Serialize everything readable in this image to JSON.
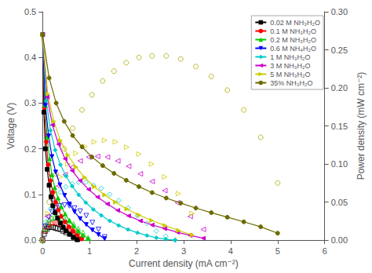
{
  "chart_data": {
    "type": "line",
    "x_label": "Current density (mA cm⁻²)",
    "y_label": "Voltage (V)",
    "y2_label": "Power density (mW cm⁻²)",
    "xlim": [
      0,
      6
    ],
    "xticks": [
      0,
      1,
      2,
      3,
      4,
      5,
      6
    ],
    "ylim": [
      0,
      0.5
    ],
    "yticks": [
      {
        "value": 0,
        "label": "0.0"
      },
      0.1,
      0.2,
      0.3,
      0.4,
      0.5
    ],
    "y2lim": [
      0,
      0.3
    ],
    "y2ticks": [
      {
        "value": 0,
        "label": "0.00"
      },
      0.05,
      {
        "value": 0.1,
        "label": "0.10"
      },
      0.15,
      {
        "value": 0.2,
        "label": "0.20"
      },
      0.25,
      {
        "value": 0.3,
        "label": "0.30"
      }
    ],
    "grid": false,
    "legend": "upper right",
    "series": [
      {
        "name": "0.02 M NH₃H₂O",
        "type": "line",
        "color": "#000000",
        "marker": "square",
        "x": [
          0.0,
          0.03,
          0.06,
          0.1,
          0.14,
          0.18,
          0.22,
          0.27,
          0.32,
          0.38,
          0.44,
          0.5,
          0.58,
          0.66,
          0.74
        ],
        "values": [
          0.45,
          0.28,
          0.2,
          0.155,
          0.12,
          0.095,
          0.075,
          0.06,
          0.048,
          0.037,
          0.028,
          0.02,
          0.013,
          0.006,
          0.001
        ]
      },
      {
        "type": "scatter",
        "axis": "y2",
        "color": "#000000",
        "marker": "square",
        "x": [
          0.0,
          0.03,
          0.06,
          0.1,
          0.14,
          0.18,
          0.22,
          0.27,
          0.32,
          0.38,
          0.44,
          0.5,
          0.58,
          0.66,
          0.74
        ],
        "values": [
          0.0,
          0.008,
          0.012,
          0.015,
          0.017,
          0.017,
          0.017,
          0.016,
          0.015,
          0.014,
          0.012,
          0.01,
          0.008,
          0.004,
          0.001
        ]
      },
      {
        "name": "0.1 M NH₃H₂O",
        "type": "line",
        "color": "#ff0000",
        "marker": "circle",
        "x": [
          0.0,
          0.04,
          0.08,
          0.12,
          0.17,
          0.22,
          0.28,
          0.34,
          0.4,
          0.48,
          0.56,
          0.65,
          0.74,
          0.83
        ],
        "values": [
          0.45,
          0.29,
          0.215,
          0.165,
          0.13,
          0.105,
          0.083,
          0.066,
          0.052,
          0.04,
          0.029,
          0.019,
          0.011,
          0.003
        ]
      },
      {
        "type": "scatter",
        "axis": "y2",
        "color": "#ff0000",
        "marker": "circle",
        "x": [
          0.0,
          0.04,
          0.08,
          0.12,
          0.17,
          0.22,
          0.28,
          0.34,
          0.4,
          0.48,
          0.56,
          0.65,
          0.74,
          0.83
        ],
        "values": [
          0.0,
          0.012,
          0.017,
          0.02,
          0.022,
          0.023,
          0.023,
          0.022,
          0.021,
          0.019,
          0.016,
          0.012,
          0.008,
          0.002
        ]
      },
      {
        "name": "0.2 M NH₃H₂O",
        "type": "line",
        "color": "#00cc00",
        "marker": "triangle",
        "x": [
          0.0,
          0.05,
          0.1,
          0.15,
          0.2,
          0.26,
          0.33,
          0.4,
          0.48,
          0.57,
          0.66,
          0.76,
          0.86,
          0.97
        ],
        "values": [
          0.45,
          0.295,
          0.225,
          0.178,
          0.143,
          0.115,
          0.092,
          0.073,
          0.057,
          0.043,
          0.031,
          0.02,
          0.011,
          0.003
        ]
      },
      {
        "type": "scatter",
        "axis": "y2",
        "color": "#00cc00",
        "marker": "triangle",
        "x": [
          0.0,
          0.05,
          0.1,
          0.15,
          0.2,
          0.26,
          0.33,
          0.4,
          0.48,
          0.57,
          0.66,
          0.76,
          0.86,
          0.97
        ],
        "values": [
          0.0,
          0.015,
          0.023,
          0.027,
          0.029,
          0.03,
          0.03,
          0.029,
          0.027,
          0.025,
          0.021,
          0.015,
          0.01,
          0.003
        ]
      },
      {
        "name": "0.6 M NH₄H₂O",
        "type": "line",
        "color": "#0000ff",
        "marker": "triangle-down",
        "x": [
          0.0,
          0.06,
          0.13,
          0.2,
          0.28,
          0.37,
          0.47,
          0.57,
          0.68,
          0.8,
          0.93,
          1.06,
          1.19,
          1.32
        ],
        "values": [
          0.45,
          0.295,
          0.228,
          0.183,
          0.149,
          0.121,
          0.098,
          0.079,
          0.062,
          0.047,
          0.034,
          0.022,
          0.012,
          0.003
        ]
      },
      {
        "type": "scatter",
        "axis": "y2",
        "color": "#0000ff",
        "marker": "triangle-down",
        "x": [
          0.0,
          0.06,
          0.13,
          0.2,
          0.28,
          0.37,
          0.47,
          0.57,
          0.68,
          0.8,
          0.93,
          1.06,
          1.19,
          1.32
        ],
        "values": [
          0.0,
          0.018,
          0.03,
          0.037,
          0.042,
          0.045,
          0.046,
          0.045,
          0.042,
          0.038,
          0.032,
          0.023,
          0.014,
          0.004
        ]
      },
      {
        "name": "1 M NH₃H₂O",
        "type": "line",
        "color": "#00cccc",
        "marker": "diamond",
        "x": [
          0.0,
          0.08,
          0.17,
          0.27,
          0.38,
          0.5,
          0.63,
          0.77,
          0.92,
          1.08,
          1.25,
          1.43,
          1.62,
          1.82,
          2.02,
          2.22,
          2.42,
          2.62,
          2.82
        ],
        "values": [
          0.45,
          0.305,
          0.24,
          0.197,
          0.165,
          0.14,
          0.118,
          0.099,
          0.082,
          0.067,
          0.054,
          0.042,
          0.032,
          0.023,
          0.016,
          0.01,
          0.005,
          0.002,
          0.0
        ]
      },
      {
        "type": "scatter",
        "axis": "y2",
        "color": "#00cccc",
        "marker": "diamond",
        "x": [
          0.0,
          0.08,
          0.17,
          0.27,
          0.38,
          0.5,
          0.63,
          0.77,
          0.92,
          1.08,
          1.25,
          1.43,
          1.62,
          1.82,
          2.02,
          2.22,
          2.42,
          2.62,
          2.82
        ],
        "values": [
          0.0,
          0.024,
          0.041,
          0.053,
          0.063,
          0.07,
          0.074,
          0.076,
          0.076,
          0.072,
          0.068,
          0.06,
          0.052,
          0.042,
          0.032,
          0.022,
          0.012,
          0.005,
          0.0
        ]
      },
      {
        "name": "3 M NH₃H₂O",
        "type": "line",
        "color": "#cc00cc",
        "marker": "triangle-left",
        "x": [
          0.0,
          0.1,
          0.21,
          0.34,
          0.48,
          0.63,
          0.8,
          0.98,
          1.17,
          1.38,
          1.6,
          1.83,
          2.08,
          2.33,
          2.6,
          2.87,
          3.14,
          3.42
        ],
        "values": [
          0.45,
          0.313,
          0.252,
          0.21,
          0.178,
          0.152,
          0.13,
          0.111,
          0.094,
          0.079,
          0.065,
          0.053,
          0.042,
          0.033,
          0.025,
          0.017,
          0.01,
          0.004
        ]
      },
      {
        "type": "scatter",
        "axis": "y2",
        "color": "#cc00cc",
        "marker": "triangle-left",
        "x": [
          0.0,
          0.1,
          0.21,
          0.34,
          0.48,
          0.63,
          0.8,
          0.98,
          1.17,
          1.38,
          1.6,
          1.83,
          2.08,
          2.33,
          2.6,
          2.87,
          3.14,
          3.42
        ],
        "values": [
          0.0,
          0.031,
          0.053,
          0.071,
          0.086,
          0.096,
          0.104,
          0.109,
          0.11,
          0.109,
          0.104,
          0.097,
          0.087,
          0.077,
          0.065,
          0.049,
          0.031,
          0.014
        ]
      },
      {
        "name": "5 M NH₃H₂O",
        "type": "line",
        "color": "#cccc00",
        "marker": "triangle-right",
        "x": [
          0.0,
          0.11,
          0.24,
          0.38,
          0.54,
          0.71,
          0.9,
          1.1,
          1.32,
          1.55,
          1.79,
          2.05,
          2.32,
          2.6,
          2.89,
          3.18
        ],
        "values": [
          0.45,
          0.32,
          0.26,
          0.218,
          0.186,
          0.16,
          0.137,
          0.117,
          0.099,
          0.083,
          0.068,
          0.055,
          0.043,
          0.032,
          0.021,
          0.011
        ]
      },
      {
        "type": "scatter",
        "axis": "y2",
        "color": "#cccc00",
        "marker": "triangle-right",
        "x": [
          0.0,
          0.11,
          0.24,
          0.38,
          0.54,
          0.71,
          0.9,
          1.1,
          1.32,
          1.55,
          1.79,
          2.05,
          2.32,
          2.6,
          2.89,
          3.18
        ],
        "values": [
          0.0,
          0.035,
          0.062,
          0.083,
          0.1,
          0.114,
          0.123,
          0.129,
          0.131,
          0.129,
          0.122,
          0.113,
          0.1,
          0.083,
          0.061,
          0.035
        ]
      },
      {
        "name": "35% NH₃H₂O",
        "type": "line",
        "color": "#6b6b00",
        "marker": "circle",
        "x": [
          0.0,
          0.14,
          0.29,
          0.46,
          0.64,
          0.84,
          1.05,
          1.28,
          1.52,
          1.78,
          2.05,
          2.33,
          2.63,
          2.94,
          3.26,
          3.59,
          3.93,
          4.28,
          4.64,
          5.0
        ],
        "values": [
          0.45,
          0.355,
          0.3,
          0.26,
          0.229,
          0.204,
          0.182,
          0.163,
          0.146,
          0.131,
          0.117,
          0.104,
          0.092,
          0.081,
          0.07,
          0.06,
          0.05,
          0.04,
          0.029,
          0.015
        ]
      },
      {
        "type": "scatter",
        "axis": "y2",
        "color": "#aaaa00",
        "marker": "circle",
        "x": [
          0.0,
          0.14,
          0.29,
          0.46,
          0.64,
          0.84,
          1.05,
          1.28,
          1.52,
          1.78,
          2.05,
          2.33,
          2.63,
          2.94,
          3.26,
          3.59,
          3.93,
          4.28,
          4.64,
          5.0
        ],
        "values": [
          0.0,
          0.05,
          0.087,
          0.12,
          0.147,
          0.171,
          0.191,
          0.209,
          0.222,
          0.233,
          0.24,
          0.242,
          0.242,
          0.238,
          0.228,
          0.215,
          0.197,
          0.171,
          0.135,
          0.075
        ]
      }
    ]
  }
}
